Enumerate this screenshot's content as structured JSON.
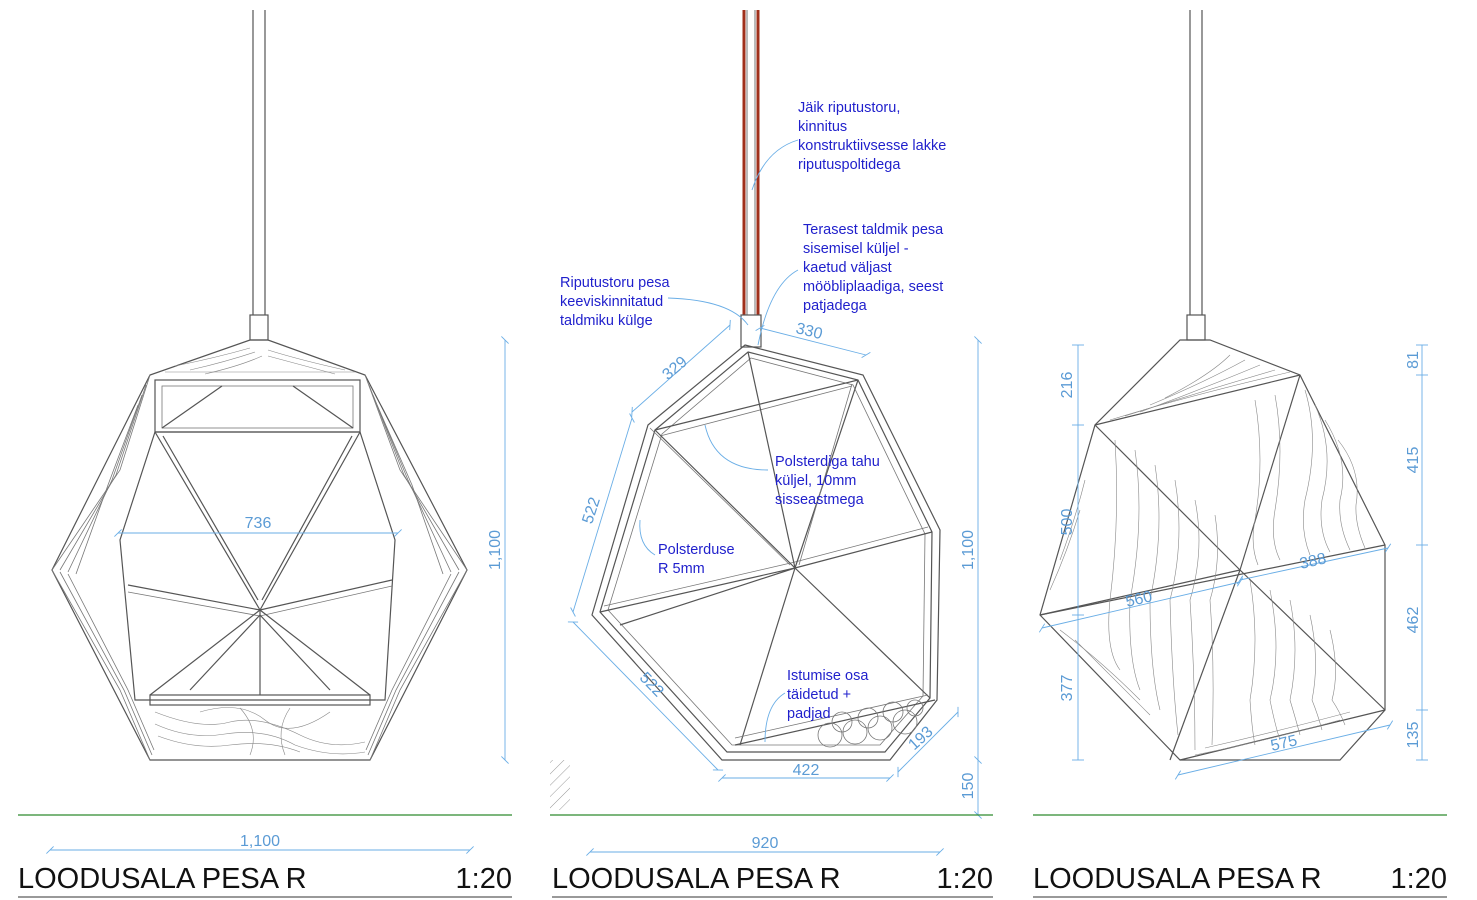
{
  "views": [
    {
      "title": "LOODUSALA PESA R",
      "scale": "1:20",
      "dimensions": {
        "width_inner": "736",
        "height": "1,100",
        "width_total": "1,100"
      }
    },
    {
      "title": "LOODUSALA PESA R",
      "scale": "1:20",
      "dimensions": {
        "top_left": "329",
        "top_right": "330",
        "left_upper": "522",
        "left_lower": "522",
        "bottom": "422",
        "bottom_right": "193",
        "height": "1,100",
        "ground": "150",
        "width_total": "920"
      },
      "notes": {
        "hanger_tube": [
          "Jäik riputustoru,",
          "kinnitus",
          "konstruktiivsesse lakke",
          "riputuspoltidega"
        ],
        "steel_frame": [
          "Terasest taldmik pesa",
          "sisemisel küljel -",
          "kaetud väljast",
          "mööbliplaadiga, seest",
          "patjadega"
        ],
        "weld": [
          "Riputustoru pesa",
          "keeviskinnitatud",
          "taldmiku külge"
        ],
        "upholstery_face": [
          "Polsterdiga tahu",
          "küljel, 10mm",
          "sisseastmega"
        ],
        "upholstery_radius": [
          "Polsterduse",
          "R 5mm"
        ],
        "seat": [
          "Istumise osa",
          "täidetud +",
          "padjad"
        ]
      }
    },
    {
      "title": "LOODUSALA PESA R",
      "scale": "1:20",
      "dimensions": {
        "r_81": "81",
        "r_415": "415",
        "r_462": "462",
        "r_135": "135",
        "l_216": "216",
        "l_500": "500",
        "l_377": "377",
        "d_560": "560",
        "d_388": "388",
        "d_575": "575"
      }
    }
  ],
  "colors": {
    "dimension": "#5b9bd5",
    "annotation": "#1f1fcc",
    "ground_line": "#2e8b2e",
    "tube": "#a0301c"
  }
}
